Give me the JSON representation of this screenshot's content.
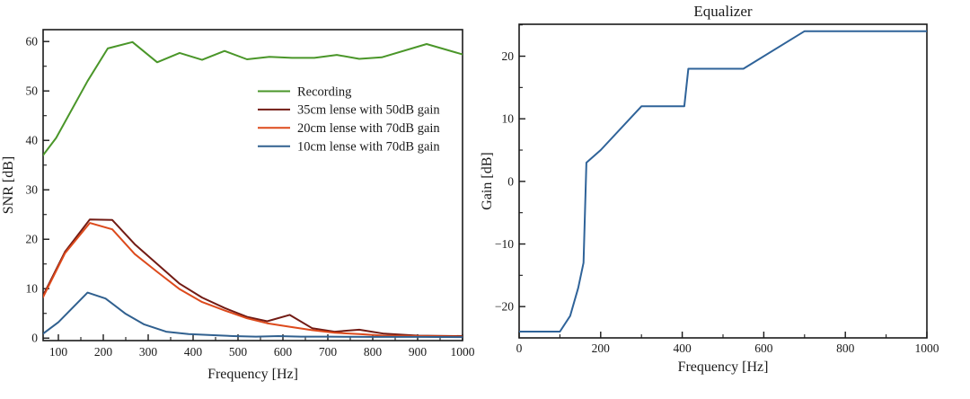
{
  "figure": {
    "background": "#ffffff",
    "axis_color": "#1a1a1a",
    "text_color": "#1a1a1a"
  },
  "chart_data": [
    {
      "id": "snr",
      "type": "line",
      "title": "",
      "xlabel": "Frequency [Hz]",
      "ylabel": "SNR [dB]",
      "xlim": [
        66,
        1000
      ],
      "ylim": [
        -0.5,
        62.4
      ],
      "xticks_major": [
        100,
        200,
        300,
        400,
        500,
        600,
        700,
        800,
        900,
        1000
      ],
      "xticks_minor": [
        150,
        250,
        350,
        450,
        550,
        650,
        750,
        850,
        950
      ],
      "yticks_major": [
        0,
        10,
        20,
        30,
        40,
        50,
        60
      ],
      "yticks_minor": [
        5,
        15,
        25,
        35,
        45,
        55
      ],
      "grid": false,
      "legend": {
        "visible": true,
        "position": "inside-center-right"
      },
      "series": [
        {
          "name": "Recording",
          "color": "#4a9629",
          "x": [
            66,
            95,
            165,
            210,
            265,
            320,
            370,
            420,
            470,
            520,
            570,
            620,
            670,
            720,
            770,
            820,
            920,
            1000
          ],
          "y": [
            37,
            40.5,
            52,
            58.6,
            59.9,
            55.8,
            57.7,
            56.3,
            58.1,
            56.4,
            56.9,
            56.7,
            56.7,
            57.3,
            56.5,
            56.8,
            59.5,
            57.4
          ]
        },
        {
          "name": "35cm lense with 50dB gain",
          "color": "#721b14",
          "x": [
            66,
            115,
            170,
            220,
            270,
            320,
            370,
            420,
            470,
            520,
            565,
            615,
            665,
            715,
            770,
            825,
            900,
            1000
          ],
          "y": [
            8.6,
            17.5,
            24,
            23.9,
            19,
            15,
            11,
            8.2,
            6.1,
            4.3,
            3.4,
            4.7,
            2,
            1.3,
            1.7,
            0.9,
            0.5,
            0.4
          ]
        },
        {
          "name": "20cm lense with 70dB gain",
          "color": "#dd4a1c",
          "x": [
            66,
            115,
            170,
            220,
            270,
            320,
            370,
            420,
            470,
            520,
            565,
            615,
            665,
            715,
            770,
            825,
            900,
            1000
          ],
          "y": [
            8.3,
            17.2,
            23.3,
            22,
            17,
            13.4,
            9.9,
            7.3,
            5.6,
            4,
            3,
            2.3,
            1.6,
            1.1,
            0.8,
            0.5,
            0.4,
            0.3
          ]
        },
        {
          "name": "10cm lense with 70dB gain",
          "color": "#30608f",
          "x": [
            66,
            100,
            165,
            205,
            250,
            290,
            340,
            390,
            440,
            490,
            540,
            590,
            640,
            700,
            800,
            900,
            1000
          ],
          "y": [
            0.9,
            3.2,
            9.2,
            8,
            4.9,
            2.8,
            1.3,
            0.8,
            0.6,
            0.4,
            0.3,
            0.4,
            0.3,
            0.3,
            0.25,
            0.25,
            0.2
          ]
        }
      ]
    },
    {
      "id": "equalizer",
      "type": "line",
      "title": "Equalizer",
      "xlabel": "Frequency [Hz]",
      "ylabel": "Gain [dB]",
      "xlim": [
        0,
        1000
      ],
      "ylim": [
        -25,
        25.1
      ],
      "xticks_major": [
        0,
        200,
        400,
        600,
        800,
        1000
      ],
      "xticks_minor": [
        100,
        300,
        500,
        700,
        900
      ],
      "yticks_major": [
        -20,
        -10,
        0,
        10,
        20
      ],
      "yticks_minor": [
        -15,
        -5,
        5,
        15,
        25
      ],
      "grid": false,
      "legend": {
        "visible": false,
        "position": "none"
      },
      "series": [
        {
          "name": "Equalizer",
          "color": "#2f6399",
          "x": [
            0,
            100,
            125,
            145,
            158,
            165,
            200,
            300,
            405,
            415,
            550,
            700,
            1000
          ],
          "y": [
            -24,
            -24,
            -21.5,
            -17,
            -13,
            3,
            5,
            12,
            12,
            18,
            18,
            24,
            24
          ]
        }
      ]
    }
  ]
}
